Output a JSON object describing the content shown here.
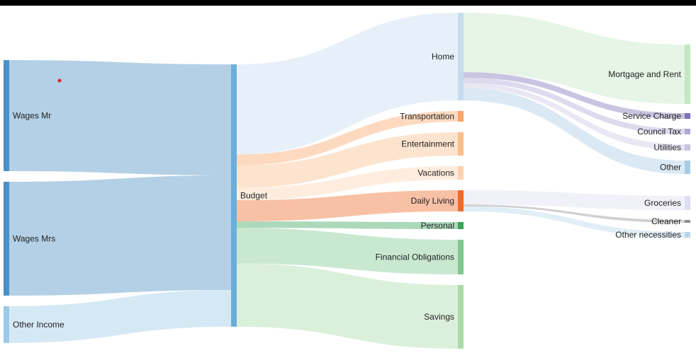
{
  "chart_data": {
    "type": "sankey",
    "nodes": [
      {
        "id": "wages_mr",
        "label": "Wages Mr",
        "color": "#4a90c4"
      },
      {
        "id": "wages_mrs",
        "label": "Wages Mrs",
        "color": "#4a90c4"
      },
      {
        "id": "other_income",
        "label": "Other Income",
        "color": "#9ccae6"
      },
      {
        "id": "budget",
        "label": "Budget",
        "color": "#6aaedb"
      },
      {
        "id": "home",
        "label": "Home",
        "color": "#c6dcee"
      },
      {
        "id": "transportation",
        "label": "Transportation",
        "color": "#fba46a"
      },
      {
        "id": "entertainment",
        "label": "Entertainment",
        "color": "#fbbf8c"
      },
      {
        "id": "vacations",
        "label": "Vacations",
        "color": "#fcd3b2"
      },
      {
        "id": "daily_living",
        "label": "Daily Living",
        "color": "#ef6b2a"
      },
      {
        "id": "personal",
        "label": "Personal",
        "color": "#3aa45a"
      },
      {
        "id": "financial_obligations",
        "label": "Financial Obligations",
        "color": "#7ec78e"
      },
      {
        "id": "savings",
        "label": "Savings",
        "color": "#a9dba8"
      },
      {
        "id": "mortgage",
        "label": "Mortgage and Rent",
        "color": "#c3e7c1"
      },
      {
        "id": "service_charge",
        "label": "Service Charge",
        "color": "#7e73b7"
      },
      {
        "id": "council_tax",
        "label": "Council Tax",
        "color": "#aea8d4"
      },
      {
        "id": "utilities",
        "label": "Utilities",
        "color": "#c9c5e3"
      },
      {
        "id": "home_other",
        "label": "Other",
        "color": "#a8cbe4"
      },
      {
        "id": "groceries",
        "label": "Groceries",
        "color": "#dedef0"
      },
      {
        "id": "cleaner",
        "label": "Cleaner",
        "color": "#8e8e8e"
      },
      {
        "id": "other_necessities",
        "label": "Other necessities",
        "color": "#b7d6ea"
      }
    ],
    "links": [
      {
        "source": "wages_mr",
        "target": "budget",
        "value": 1540
      },
      {
        "source": "wages_mrs",
        "target": "budget",
        "value": 1590
      },
      {
        "source": "other_income",
        "target": "budget",
        "value": 510
      },
      {
        "source": "budget",
        "target": "home",
        "value": 1240
      },
      {
        "source": "budget",
        "target": "transportation",
        "value": 150
      },
      {
        "source": "budget",
        "target": "entertainment",
        "value": 310
      },
      {
        "source": "budget",
        "target": "vacations",
        "value": 170
      },
      {
        "source": "budget",
        "target": "daily_living",
        "value": 290
      },
      {
        "source": "budget",
        "target": "personal",
        "value": 90
      },
      {
        "source": "budget",
        "target": "financial_obligations",
        "value": 490
      },
      {
        "source": "budget",
        "target": "savings",
        "value": 870
      },
      {
        "source": "home",
        "target": "mortgage",
        "value": 840
      },
      {
        "source": "home",
        "target": "service_charge",
        "value": 80
      },
      {
        "source": "home",
        "target": "council_tax",
        "value": 75
      },
      {
        "source": "home",
        "target": "utilities",
        "value": 70
      },
      {
        "source": "home",
        "target": "home_other",
        "value": 175
      },
      {
        "source": "daily_living",
        "target": "groceries",
        "value": 195
      },
      {
        "source": "daily_living",
        "target": "cleaner",
        "value": 25
      },
      {
        "source": "daily_living",
        "target": "other_necessities",
        "value": 70
      }
    ]
  }
}
